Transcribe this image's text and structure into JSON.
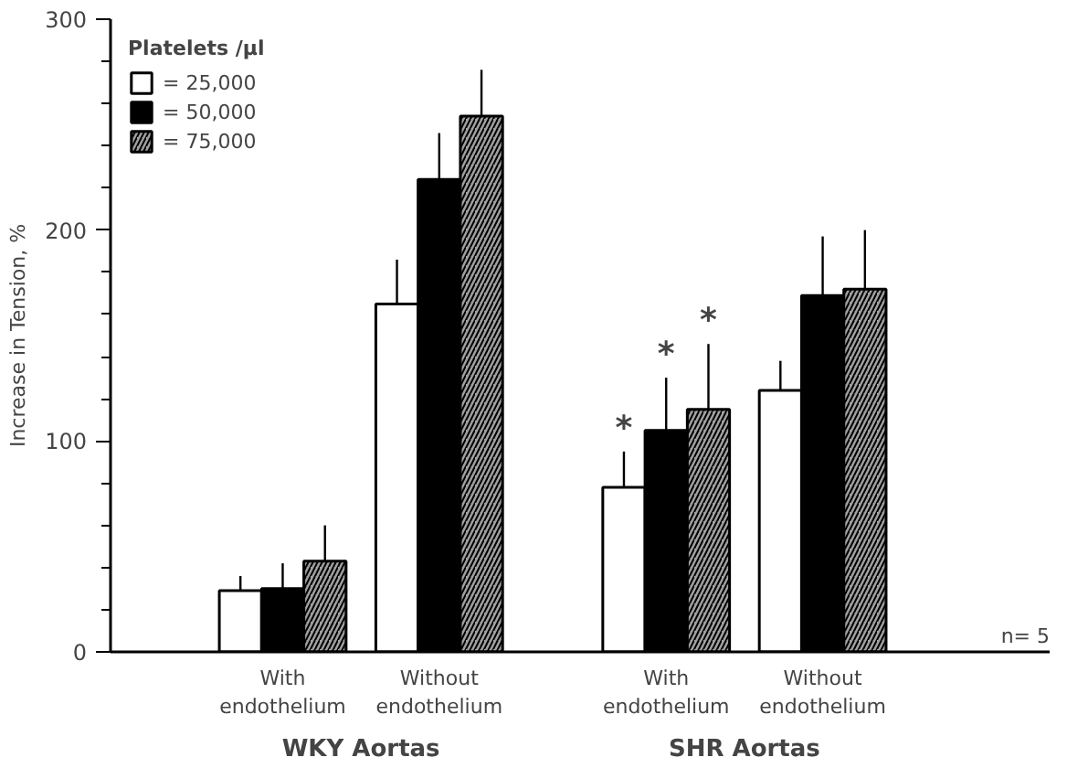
{
  "chart_data": {
    "type": "bar",
    "categories": [
      "With\nendothelium",
      "Without\nendothelium",
      "With\nendothelium",
      "Without\nendothelium"
    ],
    "ylabel": "Increase in Tension, %",
    "legend_title": "Platelets /µl",
    "series": [
      {
        "name": "= 25,000",
        "color": "#ffffff",
        "values": [
          29,
          165,
          78,
          124
        ],
        "errors": [
          [
            29,
            36
          ],
          [
            165,
            186
          ],
          [
            78,
            95
          ],
          [
            124,
            138
          ]
        ],
        "value_labels": [
          null,
          null,
          "*",
          null
        ]
      },
      {
        "name": "= 50,000",
        "color": "#000000",
        "values": [
          30,
          224,
          105,
          169
        ],
        "errors": [
          [
            30,
            42
          ],
          [
            224,
            246
          ],
          [
            105,
            130
          ],
          [
            169,
            197
          ]
        ],
        "value_labels": [
          null,
          null,
          "*",
          null
        ]
      },
      {
        "name": "= 75,000",
        "color": "#a0a0a0",
        "values": [
          43,
          254,
          115,
          172
        ],
        "errors": [
          [
            43,
            60
          ],
          [
            254,
            276
          ],
          [
            115,
            146
          ],
          [
            172,
            200
          ]
        ],
        "value_labels": [
          null,
          null,
          "*",
          null
        ]
      }
    ],
    "ylim": [
      0,
      300
    ],
    "yticks": [
      0,
      100,
      200,
      300
    ],
    "grid": false,
    "legend": "top left",
    "annotations": [
      "WKY Aortas",
      "SHR Aortas",
      "n= 5"
    ]
  }
}
